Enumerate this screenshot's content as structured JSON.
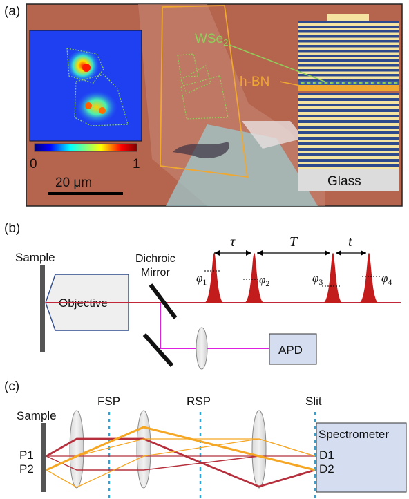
{
  "panel_a": {
    "label": "(a)",
    "colorbar_min": "0",
    "colorbar_max": "1",
    "scale_bar": "20 μm",
    "wse2_label": "WSe",
    "wse2_sub": "2",
    "hbn_label": "h-BN",
    "glass_label": "Glass",
    "colors": {
      "substrate": "#b5644e",
      "flake_outline": "#f0a830",
      "wse2": "#8fcf5a",
      "stack_blue": "#2e4a8c",
      "stack_yellow": "#f4e3a1"
    }
  },
  "panel_b": {
    "label": "(b)",
    "sample_label": "Sample",
    "objective_label": "Objective",
    "mirror_label_1": "Dichroic",
    "mirror_label_2": "Mirror",
    "apd_label": "APD",
    "tau": "τ",
    "T": "T",
    "t": "t",
    "phases": [
      {
        "sym": "φ",
        "sub": "1"
      },
      {
        "sym": "φ",
        "sub": "2"
      },
      {
        "sym": "φ",
        "sub": "3"
      },
      {
        "sym": "φ",
        "sub": "4"
      }
    ],
    "colors": {
      "beam": "#c0283a",
      "signal": "#e020e0",
      "pulse": "#c21c1c"
    }
  },
  "panel_c": {
    "label": "(c)",
    "sample_label": "Sample",
    "fsp_label": "FSP",
    "rsp_label": "RSP",
    "slit_label": "Slit",
    "spectrometer_label": "Spectrometer",
    "p1_label": "P1",
    "p2_label": "P2",
    "d1_label": "D1",
    "d2_label": "D2",
    "colors": {
      "ray_red": "#b5303c",
      "ray_orange": "#f5a623",
      "plane": "#2ea3d8"
    }
  }
}
